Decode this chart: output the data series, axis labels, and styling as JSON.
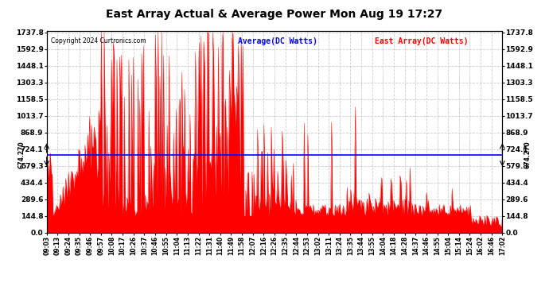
{
  "title": "East Array Actual & Average Power Mon Aug 19 17:27",
  "copyright": "Copyright 2024 Curtronics.com",
  "legend_avg": "Average(DC Watts)",
  "legend_east": "East Array(DC Watts)",
  "avg_value": 674.27,
  "ymax": 1737.8,
  "ymin": 0.0,
  "yticks": [
    0.0,
    144.8,
    289.6,
    434.4,
    579.3,
    724.1,
    868.9,
    1013.7,
    1158.5,
    1303.3,
    1448.1,
    1592.9,
    1737.8
  ],
  "bg_color": "#ffffff",
  "fill_color": "#ff0000",
  "avg_line_color": "#0000ff",
  "grid_color": "#cccccc",
  "title_color": "#000000",
  "copyright_color": "#000000",
  "legend_avg_color": "#0000ff",
  "legend_east_color": "#ff0000",
  "xtick_labels": [
    "09:03",
    "09:13",
    "09:24",
    "09:35",
    "09:46",
    "09:57",
    "10:08",
    "10:17",
    "10:26",
    "10:37",
    "10:46",
    "10:55",
    "11:04",
    "11:13",
    "11:22",
    "11:31",
    "11:40",
    "11:49",
    "11:58",
    "12:07",
    "12:16",
    "12:26",
    "12:35",
    "12:44",
    "12:53",
    "13:02",
    "13:11",
    "13:24",
    "13:35",
    "13:44",
    "13:55",
    "14:04",
    "14:18",
    "14:28",
    "14:37",
    "14:46",
    "14:55",
    "15:04",
    "15:14",
    "15:24",
    "16:02",
    "16:46",
    "17:02"
  ],
  "figsize": [
    6.9,
    3.75
  ],
  "dpi": 100
}
